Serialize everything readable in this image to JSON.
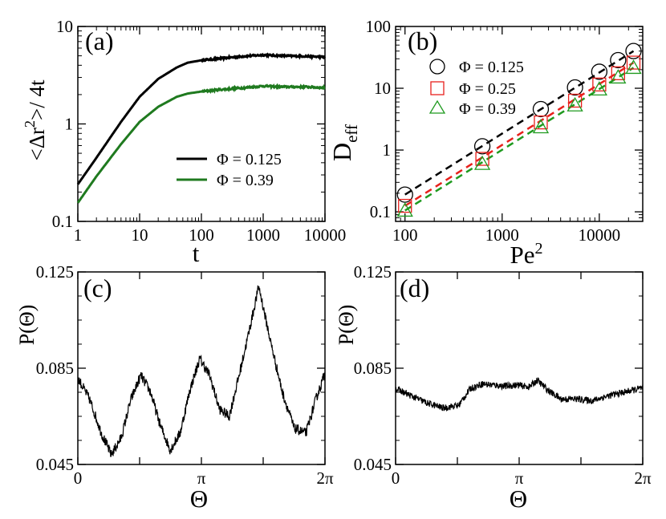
{
  "chart_data": [
    {
      "panel": "(a)",
      "type": "line",
      "xlabel": "t",
      "ylabel_main": "<Δr",
      "ylabel_sup1": "2",
      "ylabel_mid": ">/ 4t",
      "xscale": "log",
      "yscale": "log",
      "xlim": [
        1,
        10000
      ],
      "ylim": [
        0.1,
        10
      ],
      "xticks": [
        "1",
        "10",
        "100",
        "1000",
        "10000"
      ],
      "yticks": [
        "0.1",
        "1",
        "10"
      ],
      "legend_position": "lower-right",
      "series": [
        {
          "name": "Φ = 0.125",
          "color": "#000000",
          "x": [
            1,
            2,
            5,
            10,
            20,
            40,
            60,
            100,
            200,
            500,
            1000,
            2000,
            5000,
            10000
          ],
          "y": [
            0.24,
            0.45,
            1.05,
            1.9,
            2.9,
            3.8,
            4.25,
            4.5,
            4.7,
            4.95,
            5.1,
            5.0,
            4.95,
            4.85
          ]
        },
        {
          "name": "Φ = 0.39",
          "color": "#1f7a1f",
          "x": [
            1,
            2,
            5,
            10,
            20,
            40,
            60,
            100,
            200,
            500,
            1000,
            2000,
            5000,
            10000
          ],
          "y": [
            0.155,
            0.29,
            0.62,
            1.05,
            1.5,
            1.9,
            2.05,
            2.15,
            2.25,
            2.35,
            2.45,
            2.4,
            2.4,
            2.35
          ]
        }
      ]
    },
    {
      "panel": "(b)",
      "type": "scatter",
      "xlabel": "Pe",
      "xlabel_sup": "2",
      "ylabel_main": "D",
      "ylabel_sub": "eff",
      "xscale": "log",
      "yscale": "log",
      "xlim": [
        80,
        28000
      ],
      "ylim": [
        0.07,
        100
      ],
      "xticks": [
        "100",
        "1000",
        "10000"
      ],
      "yticks": [
        "0.1",
        "1",
        "10",
        "100"
      ],
      "legend_position": "top-left",
      "series": [
        {
          "name": "Φ = 0.125",
          "color": "#000000",
          "marker": "circle",
          "x": [
            100,
            625,
            2500,
            5625,
            10000,
            15625,
            22500
          ],
          "y": [
            0.19,
            1.15,
            4.6,
            10.3,
            18.5,
            28.5,
            40
          ]
        },
        {
          "name": "Φ = 0.25",
          "color": "#e8201c",
          "marker": "square",
          "x": [
            100,
            625,
            2500,
            5625,
            10000,
            15625,
            22500
          ],
          "y": [
            0.125,
            0.72,
            2.8,
            6.3,
            11.5,
            17.5,
            26
          ]
        },
        {
          "name": "Φ = 0.39",
          "color": "#1f9a1f",
          "marker": "triangle",
          "x": [
            100,
            625,
            2500,
            5625,
            10000,
            15625,
            22500
          ],
          "y": [
            0.105,
            0.6,
            2.35,
            5.3,
            9.6,
            15,
            21.5
          ]
        }
      ]
    },
    {
      "panel": "(c)",
      "type": "line",
      "xlabel": "Θ",
      "ylabel": "P(Θ)",
      "xlim": [
        0,
        6.2832
      ],
      "ylim": [
        0.045,
        0.125
      ],
      "xticks": [
        "0",
        "π",
        "2π"
      ],
      "yticks": [
        "0.045",
        "0.085",
        "0.125"
      ],
      "series": [
        {
          "name": "P(Θ)",
          "color": "#000000",
          "x": [
            0,
            0.3,
            0.6,
            0.85,
            1.1,
            1.35,
            1.6,
            1.85,
            2.1,
            2.35,
            2.6,
            2.85,
            3.1,
            3.35,
            3.6,
            3.85,
            4.1,
            4.35,
            4.6,
            4.9,
            5.2,
            5.5,
            5.8,
            6.05,
            6.2832
          ],
          "y": [
            0.081,
            0.072,
            0.058,
            0.049,
            0.056,
            0.072,
            0.082,
            0.075,
            0.061,
            0.051,
            0.058,
            0.076,
            0.089,
            0.082,
            0.068,
            0.065,
            0.082,
            0.1,
            0.119,
            0.096,
            0.075,
            0.06,
            0.058,
            0.072,
            0.083
          ]
        }
      ]
    },
    {
      "panel": "(d)",
      "type": "line",
      "xlabel": "Θ",
      "ylabel": "P(Θ)",
      "xlim": [
        0,
        6.2832
      ],
      "ylim": [
        0.045,
        0.125
      ],
      "xticks": [
        "0",
        "π",
        "2π"
      ],
      "yticks": [
        "0.045",
        "0.085",
        "0.125"
      ],
      "series": [
        {
          "name": "P(Θ)",
          "color": "#000000",
          "x": [
            0,
            0.4,
            0.8,
            1.2,
            1.6,
            1.9,
            2.2,
            2.5,
            2.8,
            3.1,
            3.4,
            3.6,
            3.9,
            4.2,
            4.6,
            5.0,
            5.4,
            5.8,
            6.2832
          ],
          "y": [
            0.0765,
            0.0735,
            0.0705,
            0.0685,
            0.0695,
            0.0765,
            0.0785,
            0.078,
            0.0775,
            0.078,
            0.0772,
            0.08,
            0.0755,
            0.0722,
            0.0722,
            0.0715,
            0.0735,
            0.075,
            0.0768
          ]
        }
      ]
    }
  ]
}
